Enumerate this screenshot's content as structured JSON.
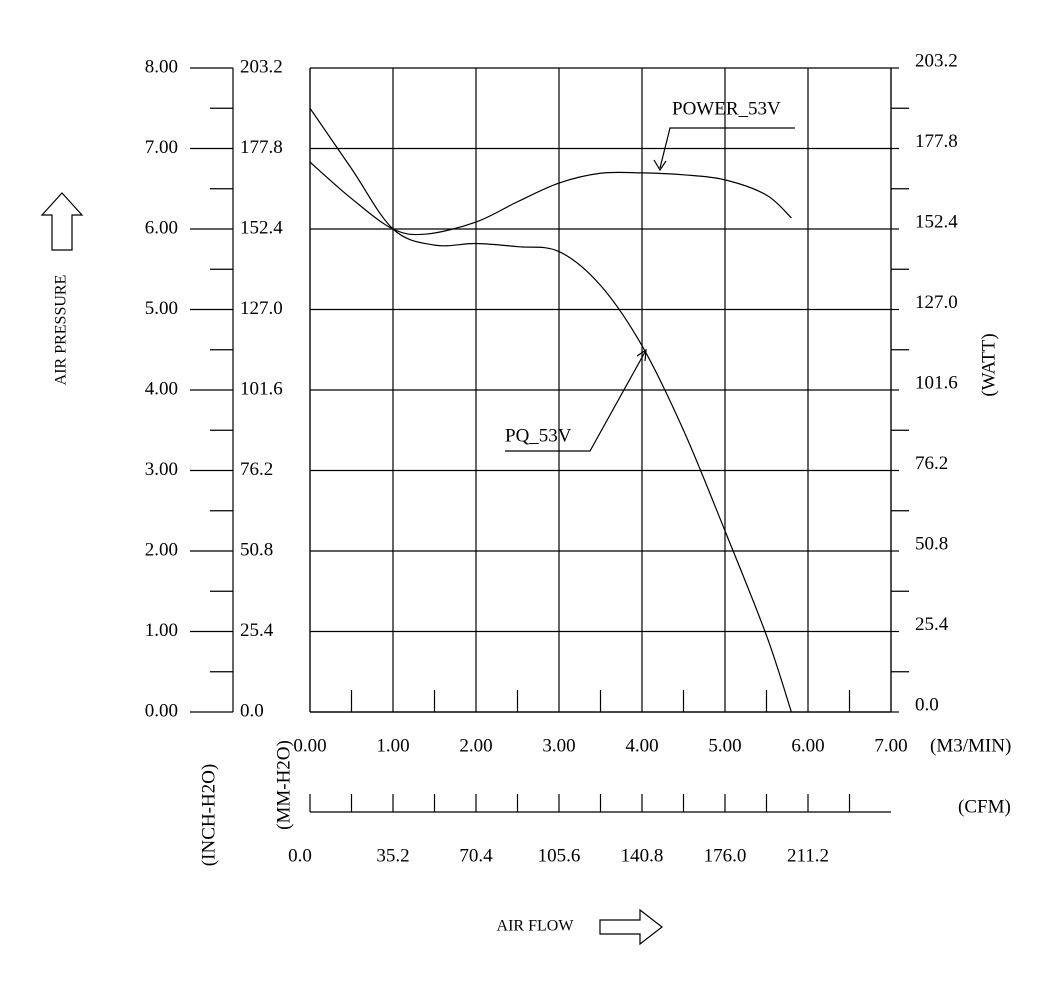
{
  "chart_data": {
    "type": "line",
    "y_label": "AIR PRESSURE",
    "y_unit": "(INCH-H2O)",
    "y3_unit": "(MM-H2O)",
    "y2_unit": "(WATT)",
    "x_unit": "(M3/MIN)",
    "x2_unit": "(CFM)",
    "x_label": "AIR FLOW",
    "xlim": [
      0,
      7
    ],
    "xticks": [
      {
        "value": 0,
        "label": "0.00"
      },
      {
        "value": 1,
        "label": "1.00"
      },
      {
        "value": 2,
        "label": "2.00"
      },
      {
        "value": 3,
        "label": "3.00"
      },
      {
        "value": 4,
        "label": "4.00"
      },
      {
        "value": 5,
        "label": "5.00"
      },
      {
        "value": 6,
        "label": "6.00"
      },
      {
        "value": 7,
        "label": "7.00"
      }
    ],
    "x2lim": [
      0,
      246.4
    ],
    "x2ticks": [
      {
        "value": 0,
        "label": "0.0"
      },
      35.2,
      70.4,
      105.6,
      140.8,
      {
        "value": 176,
        "label": "176.0"
      },
      211.2
    ],
    "ylim": [
      0,
      8
    ],
    "yticks": [
      {
        "value": 0,
        "label": "0.00"
      },
      {
        "value": 1,
        "label": "1.00"
      },
      {
        "value": 2,
        "label": "2.00"
      },
      {
        "value": 3,
        "label": "3.00"
      },
      {
        "value": 4,
        "label": "4.00"
      },
      {
        "value": 5,
        "label": "5.00"
      },
      {
        "value": 6,
        "label": "6.00"
      },
      {
        "value": 7,
        "label": "7.00"
      },
      {
        "value": 8,
        "label": "8.00"
      }
    ],
    "y3lim": [
      0,
      203.2
    ],
    "y3ticks": [
      {
        "value": 0,
        "label": "0.0"
      },
      25.4,
      50.8,
      76.2,
      101.6,
      {
        "value": 127,
        "label": "127.0"
      },
      152.4,
      177.8,
      203.2
    ],
    "y2lim": [
      0,
      203.2
    ],
    "y2ticks": [
      {
        "value": 0,
        "label": "0.0"
      },
      25.4,
      50.8,
      76.2,
      101.6,
      {
        "value": 127,
        "label": "127.0"
      },
      152.4,
      177.8,
      203.2
    ],
    "grid": true,
    "series": [
      {
        "name": "PQ_53V",
        "color": "#000000",
        "x": [
          0,
          0.5,
          1,
          1.5,
          2,
          2.5,
          3,
          3.5,
          4,
          4.5,
          5,
          5.5,
          5.8
        ],
        "values": [
          7.5,
          6.75,
          6.0,
          5.8,
          5.82,
          5.78,
          5.72,
          5.3,
          4.55,
          3.5,
          2.25,
          0.95,
          0
        ]
      },
      {
        "name": "POWER_53V",
        "color": "#000000",
        "axis": "y2",
        "x": [
          0,
          0.5,
          1,
          1.4,
          2,
          2.5,
          3,
          3.5,
          4,
          4.5,
          5,
          5.5,
          5.8
        ],
        "values": [
          173.5,
          162,
          152.4,
          150.8,
          154.6,
          161,
          166.9,
          170,
          170.1,
          169.5,
          167.9,
          163.1,
          155.9
        ]
      }
    ]
  }
}
